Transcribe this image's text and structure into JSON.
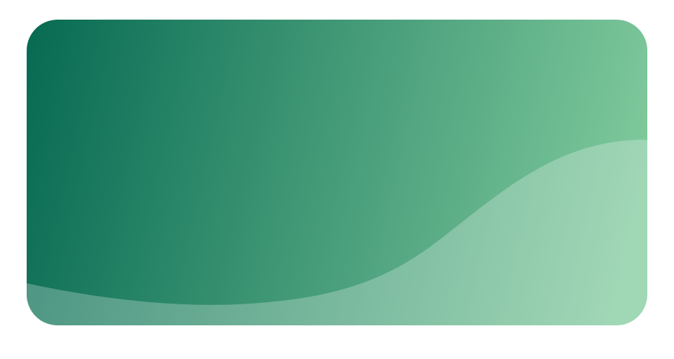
{
  "card": {
    "gradient_start_color": "#066A52",
    "gradient_end_color": "#7FC99C",
    "wave_color": "#FFFFFF",
    "background_color": "#FFFFFF"
  }
}
